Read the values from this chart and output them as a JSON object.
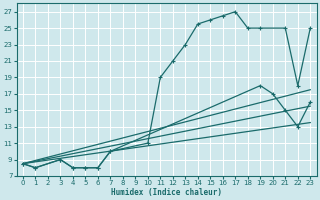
{
  "xlabel": "Humidex (Indice chaleur)",
  "bg_color": "#cfe8ec",
  "grid_color": "#ffffff",
  "line_color": "#1a6b6b",
  "xlim": [
    -0.5,
    23.5
  ],
  "ylim": [
    7,
    28
  ],
  "xticks": [
    0,
    1,
    2,
    3,
    4,
    5,
    6,
    7,
    8,
    9,
    10,
    11,
    12,
    13,
    14,
    15,
    16,
    17,
    18,
    19,
    20,
    21,
    22,
    23
  ],
  "yticks": [
    7,
    9,
    11,
    13,
    15,
    17,
    19,
    21,
    23,
    25,
    27
  ],
  "main_curve_x": [
    0,
    1,
    3,
    4,
    5,
    6,
    7,
    10,
    11,
    12,
    13,
    14,
    15,
    16,
    17,
    18,
    19,
    21,
    22,
    23
  ],
  "main_curve_y": [
    8.5,
    8.0,
    9.0,
    8.0,
    8.0,
    8.0,
    10.0,
    11.0,
    19.0,
    21.0,
    23.0,
    25.5,
    26.0,
    26.5,
    27.0,
    25.0,
    25.0,
    25.0,
    18.0,
    25.0
  ],
  "bottom_curve_x": [
    0,
    1,
    3,
    4,
    5,
    6,
    7,
    19,
    20,
    21,
    22,
    23
  ],
  "bottom_curve_y": [
    8.5,
    8.0,
    9.0,
    8.0,
    8.0,
    8.0,
    10.0,
    18.0,
    17.0,
    15.0,
    13.0,
    16.0
  ],
  "line1_x": [
    0,
    23
  ],
  "line1_y": [
    8.5,
    17.5
  ],
  "line2_x": [
    0,
    23
  ],
  "line2_y": [
    8.5,
    15.5
  ],
  "line3_x": [
    0,
    23
  ],
  "line3_y": [
    8.5,
    13.5
  ]
}
